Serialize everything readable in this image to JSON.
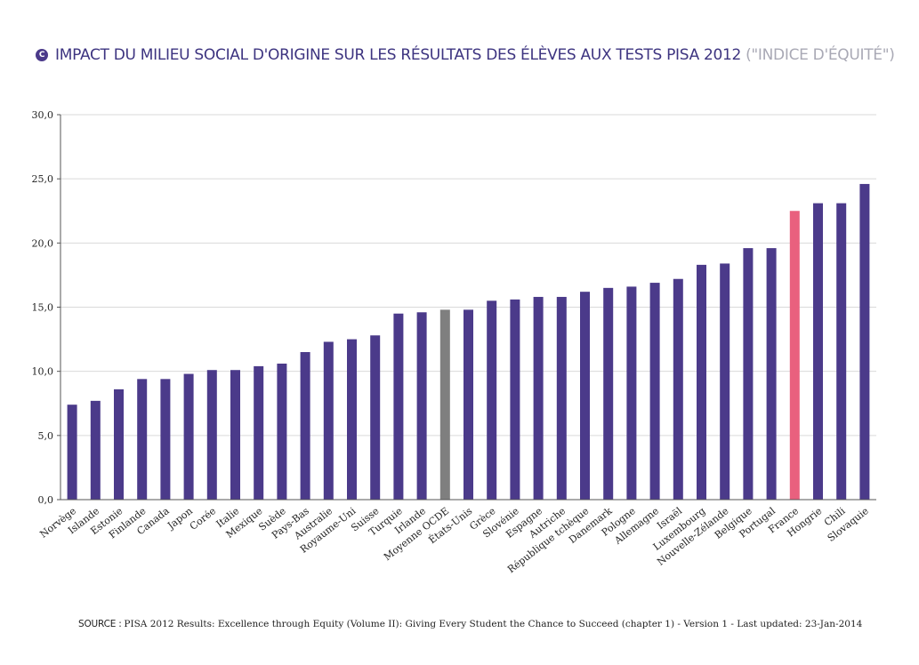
{
  "header": {
    "badge_letter": "C",
    "title": "IMPACT DU MILIEU SOCIAL D'ORIGINE SUR LES RÉSULTATS DES ÉLÈVES AUX TESTS PISA 2012",
    "subtitle": "(\"INDICE D'ÉQUITÉ\")"
  },
  "footer": {
    "source_label": "SOURCE :",
    "source_text": "PISA 2012 Results: Excellence through Equity (Volume II): Giving Every Student the Chance to Succeed  (chapter 1) - Version 1 - Last updated: 23-Jan-2014"
  },
  "colors": {
    "bar": "#4b3a8a",
    "oecd_average": "#7f7f7f",
    "france": "#e9607e",
    "title": "#3d3480",
    "subtitle": "#a9a9b5",
    "grid": "#d9d9d9",
    "axis": "#555555"
  },
  "chart_data": {
    "type": "bar",
    "title": "IMPACT DU MILIEU SOCIAL D'ORIGINE SUR LES RÉSULTATS DES ÉLÈVES AUX TESTS PISA 2012",
    "xlabel": "",
    "ylabel": "",
    "ylim": [
      0,
      30
    ],
    "yticks": [
      "0,0",
      "5,0",
      "10,0",
      "15,0",
      "20,0",
      "25,0",
      "30,0"
    ],
    "grid": true,
    "categories": [
      "Norvège",
      "Islande",
      "Estonie",
      "Finlande",
      "Canada",
      "Japon",
      "Corée",
      "Italie",
      "Mexique",
      "Suède",
      "Pays-Bas",
      "Australie",
      "Royaume-Uni",
      "Suisse",
      "Turquie",
      "Irlande",
      "Moyenne OCDE",
      "États-Unis",
      "Grèce",
      "Slovénie",
      "Espagne",
      "Autriche",
      "République tchèque",
      "Danemark",
      "Pologne",
      "Allemagne",
      "Israël",
      "Luxembourg",
      "Nouvelle-Zélande",
      "Belgique",
      "Portugal",
      "France",
      "Hongrie",
      "Chili",
      "Slovaquie"
    ],
    "values": [
      7.4,
      7.7,
      8.6,
      9.4,
      9.4,
      9.8,
      10.1,
      10.1,
      10.4,
      10.6,
      11.5,
      12.3,
      12.5,
      12.8,
      14.5,
      14.6,
      14.8,
      14.8,
      15.5,
      15.6,
      15.8,
      15.8,
      16.2,
      16.5,
      16.6,
      16.9,
      17.2,
      18.3,
      18.4,
      19.6,
      19.6,
      22.5,
      23.1,
      23.1,
      24.6
    ],
    "highlight": {
      "Moyenne OCDE": "oecd_average",
      "France": "france"
    }
  }
}
